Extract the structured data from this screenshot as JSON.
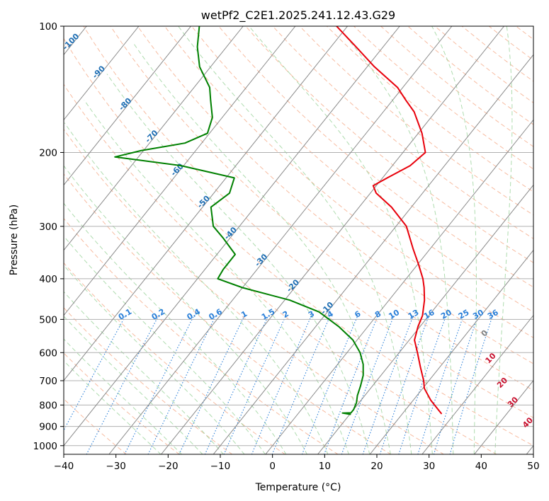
{
  "chart_data": {
    "type": "skewt",
    "title": "wetPf2_C2E1.2025.241.12.43.G29",
    "xlabel": "Temperature (°C)",
    "ylabel": "Pressure (hPa)",
    "xlim": [
      -40,
      50
    ],
    "ylim": [
      1050,
      100
    ],
    "y_scale": "log",
    "grid": true,
    "x_ticks": [
      "−40",
      "−30",
      "−20",
      "−10",
      "0",
      "10",
      "20",
      "30",
      "40",
      "50"
    ],
    "y_ticks": [
      "100",
      "200",
      "300",
      "400",
      "500",
      "600",
      "700",
      "800",
      "900",
      "1000"
    ],
    "series": [
      {
        "role": "temperature",
        "color": "#e8000b",
        "points": [
          {
            "p": 838,
            "t": 27.4
          },
          {
            "p": 820,
            "t": 26.2
          },
          {
            "p": 780,
            "t": 23.4
          },
          {
            "p": 730,
            "t": 20.3
          },
          {
            "p": 700,
            "t": 19.0
          },
          {
            "p": 650,
            "t": 16.3
          },
          {
            "p": 600,
            "t": 13.5
          },
          {
            "p": 560,
            "t": 11.0
          },
          {
            "p": 520,
            "t": 9.6
          },
          {
            "p": 490,
            "t": 8.8
          },
          {
            "p": 450,
            "t": 6.8
          },
          {
            "p": 420,
            "t": 4.8
          },
          {
            "p": 400,
            "t": 3.2
          },
          {
            "p": 370,
            "t": 0.2
          },
          {
            "p": 340,
            "t": -3.2
          },
          {
            "p": 300,
            "t": -8.0
          },
          {
            "p": 270,
            "t": -13.8
          },
          {
            "p": 250,
            "t": -18.9
          },
          {
            "p": 240,
            "t": -20.6
          },
          {
            "p": 230,
            "t": -19.1
          },
          {
            "p": 215,
            "t": -16.6
          },
          {
            "p": 200,
            "t": -15.7
          },
          {
            "p": 180,
            "t": -19.3
          },
          {
            "p": 160,
            "t": -24.1
          },
          {
            "p": 150,
            "t": -27.5
          },
          {
            "p": 140,
            "t": -31.0
          },
          {
            "p": 125,
            "t": -38.6
          },
          {
            "p": 112,
            "t": -45.2
          },
          {
            "p": 100,
            "t": -52.1
          }
        ]
      },
      {
        "role": "dewpoint",
        "color": "#008000",
        "points": [
          {
            "p": 842,
            "t": 10.1
          },
          {
            "p": 836,
            "t": 8.4
          },
          {
            "p": 835,
            "t": 10.0
          },
          {
            "p": 820,
            "t": 10.0
          },
          {
            "p": 790,
            "t": 9.5
          },
          {
            "p": 760,
            "t": 8.6
          },
          {
            "p": 720,
            "t": 7.7
          },
          {
            "p": 680,
            "t": 6.6
          },
          {
            "p": 640,
            "t": 4.9
          },
          {
            "p": 600,
            "t": 2.5
          },
          {
            "p": 560,
            "t": -0.8
          },
          {
            "p": 520,
            "t": -5.6
          },
          {
            "p": 480,
            "t": -11.6
          },
          {
            "p": 450,
            "t": -19.0
          },
          {
            "p": 420,
            "t": -30.0
          },
          {
            "p": 400,
            "t": -36.1
          },
          {
            "p": 380,
            "t": -36.5
          },
          {
            "p": 350,
            "t": -36.5
          },
          {
            "p": 320,
            "t": -41.3
          },
          {
            "p": 300,
            "t": -45.0
          },
          {
            "p": 270,
            "t": -48.4
          },
          {
            "p": 250,
            "t": -47.0
          },
          {
            "p": 230,
            "t": -48.4
          },
          {
            "p": 215,
            "t": -60.5
          },
          {
            "p": 205,
            "t": -74.5
          },
          {
            "p": 198,
            "t": -70.5
          },
          {
            "p": 190,
            "t": -63.2
          },
          {
            "p": 180,
            "t": -60.4
          },
          {
            "p": 165,
            "t": -61.9
          },
          {
            "p": 150,
            "t": -64.9
          },
          {
            "p": 140,
            "t": -67.0
          },
          {
            "p": 125,
            "t": -72.1
          },
          {
            "p": 112,
            "t": -75.6
          },
          {
            "p": 100,
            "t": -78.4
          }
        ]
      }
    ],
    "isotherm_labels": [
      {
        "text": "-100",
        "t": -100,
        "p": 110
      },
      {
        "text": "-90",
        "t": -90,
        "p": 130
      },
      {
        "text": "-80",
        "t": -80,
        "p": 155
      },
      {
        "text": "-70",
        "t": -70,
        "p": 185
      },
      {
        "text": "-60",
        "t": -60,
        "p": 222
      },
      {
        "text": "-50",
        "t": -50,
        "p": 265
      },
      {
        "text": "-40",
        "t": -40,
        "p": 315
      },
      {
        "text": "-30",
        "t": -30,
        "p": 365
      },
      {
        "text": "-20",
        "t": -20,
        "p": 420
      },
      {
        "text": "-10",
        "t": -10,
        "p": 475
      }
    ],
    "mixing_ratio_labels": [
      "0.1",
      "0.2",
      "0.4",
      "0.6",
      "1",
      "1.5",
      "2",
      "3",
      "4",
      "6",
      "8",
      "10",
      "13",
      "16",
      "20",
      "25",
      "30",
      "36"
    ],
    "moist_adiabat_labels": [
      {
        "text": "0",
        "t": 24,
        "p": 545,
        "color": "#808080"
      },
      {
        "text": "10",
        "t": 29,
        "p": 625,
        "color": "#c8102e"
      },
      {
        "text": "20",
        "t": 35,
        "p": 715,
        "color": "#c8102e"
      },
      {
        "text": "30",
        "t": 40,
        "p": 795,
        "color": "#c8102e"
      },
      {
        "text": "40",
        "t": 46,
        "p": 890,
        "color": "#c8102e"
      }
    ],
    "colors": {
      "temperature": "#e8000b",
      "dewpoint": "#008000",
      "isotherm": "#8a8a8a",
      "isobar": "#b0b0b0",
      "dry_adiabat": "#f4a582",
      "moist_adiabat": "#9bd39b",
      "mixing_ratio": "#2a7fd8",
      "isotherm_label": "#1f6fb4",
      "ice_line": "#c9a27a"
    }
  }
}
